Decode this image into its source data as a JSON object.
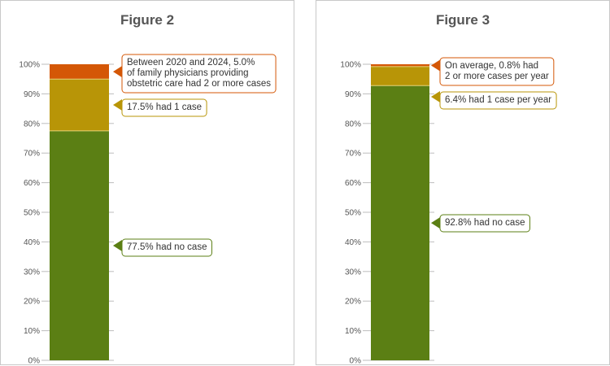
{
  "chart_data": [
    {
      "type": "bar",
      "stacked": true,
      "title": "Figure 2",
      "ylim": [
        0,
        100
      ],
      "y_ticks": [
        "0%",
        "10%",
        "20%",
        "30%",
        "40%",
        "50%",
        "60%",
        "70%",
        "80%",
        "90%",
        "100%"
      ],
      "grid": false,
      "legend": "none",
      "series": [
        {
          "values": [
            77.5
          ],
          "color": "#5b7f14"
        },
        {
          "values": [
            17.5
          ],
          "color": "#b89507"
        },
        {
          "values": [
            5.0
          ],
          "color": "#d45706"
        }
      ],
      "annotations": [
        {
          "series": 2,
          "text": [
            "Between 2020 and 2024, 5.0%",
            "of family physicians providing",
            "obstetric care had 2 or more cases"
          ]
        },
        {
          "series": 1,
          "text": [
            "17.5% had 1 case"
          ]
        },
        {
          "series": 0,
          "text": [
            "77.5% had no case"
          ]
        }
      ]
    },
    {
      "type": "bar",
      "stacked": true,
      "title": "Figure 3",
      "ylim": [
        0,
        100
      ],
      "y_ticks": [
        "0%",
        "10%",
        "20%",
        "30%",
        "40%",
        "50%",
        "60%",
        "70%",
        "80%",
        "90%",
        "100%"
      ],
      "grid": false,
      "legend": "none",
      "series": [
        {
          "values": [
            92.8
          ],
          "color": "#5b7f14"
        },
        {
          "values": [
            6.4
          ],
          "color": "#b89507"
        },
        {
          "values": [
            0.8
          ],
          "color": "#d45706"
        }
      ],
      "annotations": [
        {
          "series": 2,
          "text": [
            "On average, 0.8% had",
            "2 or more cases per year"
          ]
        },
        {
          "series": 1,
          "text": [
            "6.4% had 1 case per year"
          ]
        },
        {
          "series": 0,
          "text": [
            "92.8% had no case"
          ]
        }
      ]
    }
  ]
}
